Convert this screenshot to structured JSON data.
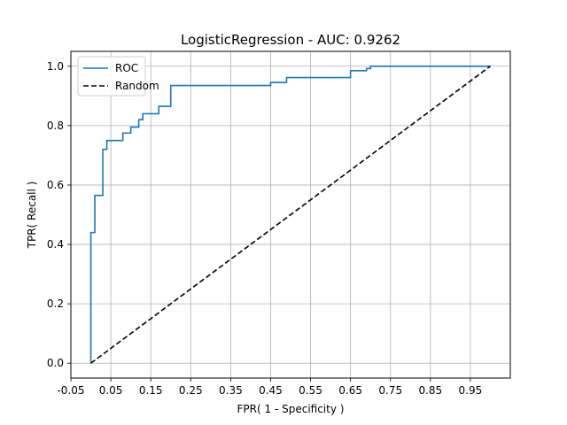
{
  "chart_data": {
    "type": "line",
    "title": "LogisticRegression - AUC: 0.9262",
    "xlabel": "FPR( 1 - Specificity )",
    "ylabel": "TPR( Recall )",
    "xlim": [
      -0.05,
      1.05
    ],
    "ylim": [
      -0.05,
      1.05
    ],
    "xticks": [
      -0.05,
      0.05,
      0.15,
      0.25,
      0.35,
      0.45,
      0.55,
      0.65,
      0.75,
      0.85,
      0.95
    ],
    "xtick_labels": [
      "-0.05",
      "0.05",
      "0.15",
      "0.25",
      "0.35",
      "0.45",
      "0.55",
      "0.65",
      "0.75",
      "0.85",
      "0.95"
    ],
    "yticks": [
      0.0,
      0.2,
      0.4,
      0.6,
      0.8,
      1.0
    ],
    "ytick_labels": [
      "0.0",
      "0.2",
      "0.4",
      "0.6",
      "0.8",
      "1.0"
    ],
    "grid": true,
    "legend_position": "top-left",
    "series": [
      {
        "name": "ROC",
        "color": "#1f77b4",
        "style": "solid",
        "x": [
          0,
          0,
          0.01,
          0.01,
          0.03,
          0.03,
          0.04,
          0.04,
          0.08,
          0.08,
          0.1,
          0.1,
          0.12,
          0.12,
          0.13,
          0.13,
          0.17,
          0.17,
          0.2,
          0.2,
          0.45,
          0.45,
          0.49,
          0.49,
          0.65,
          0.65,
          0.69,
          0.69,
          0.7,
          0.7,
          1.0
        ],
        "y": [
          0,
          0.44,
          0.44,
          0.565,
          0.565,
          0.72,
          0.72,
          0.75,
          0.75,
          0.775,
          0.775,
          0.795,
          0.795,
          0.82,
          0.82,
          0.84,
          0.84,
          0.865,
          0.865,
          0.935,
          0.935,
          0.945,
          0.945,
          0.962,
          0.962,
          0.985,
          0.985,
          0.992,
          0.992,
          1.0,
          1.0
        ]
      },
      {
        "name": "Random",
        "color": "#000000",
        "style": "dashed",
        "x": [
          0,
          1
        ],
        "y": [
          0,
          1
        ]
      }
    ]
  }
}
